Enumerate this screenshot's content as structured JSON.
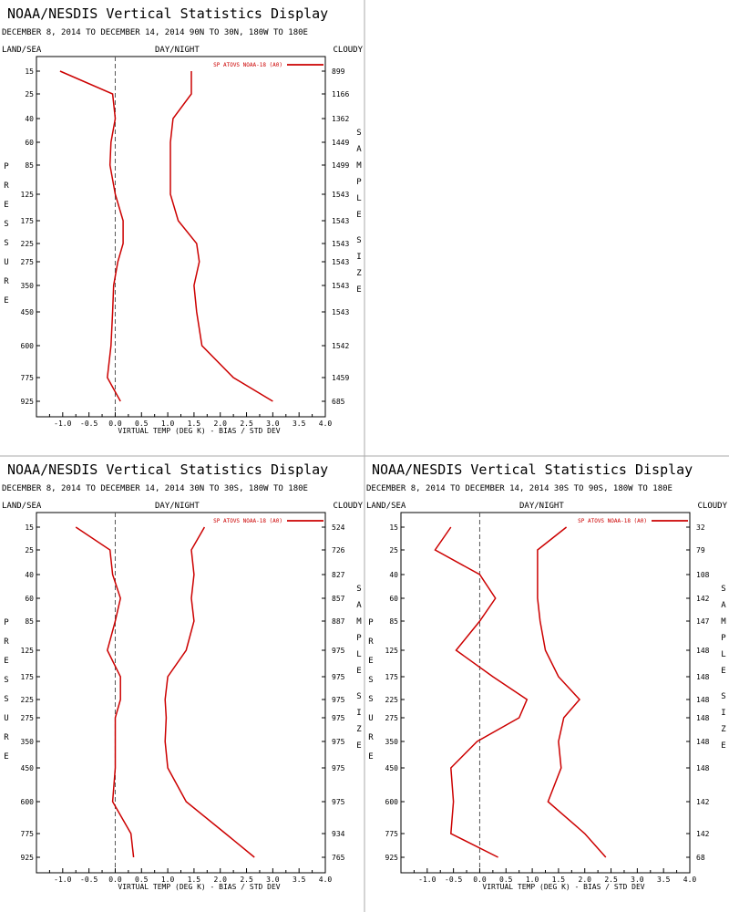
{
  "title": "NOAA/NESDIS Vertical Statistics Display",
  "header_labels": {
    "left": "LAND/SEA",
    "center": "DAY/NIGHT",
    "right": "CLOUDY"
  },
  "side_labels": {
    "left": "PRESSURE",
    "right": "SAMPLE SIZE"
  },
  "line_color": "#cc0000",
  "frame_color": "#aaaaaa",
  "chart_data": [
    {
      "type": "line",
      "subtitle": "DECEMBER 8, 2014 TO DECEMBER 14, 2014 90N TO 30N, 180W TO 180E",
      "xlabel": "VIRTUAL TEMP (DEG K) - BIAS / STD DEV",
      "legend": "SP ATOVS NOAA-18 (A0)",
      "xlim": [
        -1.5,
        4.0
      ],
      "xticks": [
        "-1.0",
        "-0.5",
        "0.0",
        "0.5",
        "1.0",
        "1.5",
        "2.0",
        "2.5",
        "3.0",
        "3.5",
        "4.0"
      ],
      "pressure_levels": [
        "15",
        "25",
        "40",
        "60",
        "85",
        "125",
        "175",
        "225",
        "275",
        "350",
        "450",
        "600",
        "775",
        "925"
      ],
      "sample_size": [
        "899",
        "1166",
        "1362",
        "1449",
        "1499",
        "1543",
        "1543",
        "1543",
        "1543",
        "1543",
        "1543",
        "1542",
        "1459",
        "685"
      ],
      "series": [
        {
          "values": [
            -1.05,
            -0.05,
            0.0,
            -0.08,
            -0.1,
            0.0,
            0.15,
            0.15,
            0.05,
            -0.03,
            -0.05,
            -0.08,
            -0.15,
            0.1
          ]
        },
        {
          "values": [
            1.45,
            1.45,
            1.1,
            1.05,
            1.05,
            1.05,
            1.2,
            1.55,
            1.6,
            1.5,
            1.55,
            1.65,
            2.25,
            3.0
          ]
        }
      ]
    },
    {
      "type": "line",
      "subtitle": "DECEMBER 8, 2014 TO DECEMBER 14, 2014 30N TO 30S, 180W TO 180E",
      "xlabel": "VIRTUAL TEMP (DEG K) - BIAS / STD DEV",
      "legend": "SP ATOVS NOAA-18 (A0)",
      "xlim": [
        -1.5,
        4.0
      ],
      "xticks": [
        "-1.0",
        "-0.5",
        "0.0",
        "0.5",
        "1.0",
        "1.5",
        "2.0",
        "2.5",
        "3.0",
        "3.5",
        "4.0"
      ],
      "pressure_levels": [
        "15",
        "25",
        "40",
        "60",
        "85",
        "125",
        "175",
        "225",
        "275",
        "350",
        "450",
        "600",
        "775",
        "925"
      ],
      "sample_size": [
        "524",
        "726",
        "827",
        "857",
        "887",
        "975",
        "975",
        "975",
        "975",
        "975",
        "975",
        "975",
        "934",
        "765"
      ],
      "series": [
        {
          "values": [
            -0.75,
            -0.1,
            -0.05,
            0.1,
            0.0,
            -0.15,
            0.1,
            0.1,
            0.0,
            0.0,
            0.0,
            -0.05,
            0.3,
            0.35
          ]
        },
        {
          "values": [
            1.7,
            1.45,
            1.5,
            1.45,
            1.5,
            1.35,
            1.0,
            0.95,
            0.97,
            0.95,
            1.0,
            1.35,
            2.1,
            2.65
          ]
        }
      ]
    },
    {
      "type": "line",
      "subtitle": "DECEMBER 8, 2014 TO DECEMBER 14, 2014 30S TO 90S, 180W TO 180E",
      "xlabel": "VIRTUAL TEMP (DEG K) - BIAS / STD DEV",
      "legend": "SP ATOVS NOAA-18 (A0)",
      "xlim": [
        -1.5,
        4.0
      ],
      "xticks": [
        "-1.0",
        "-0.5",
        "0.0",
        "0.5",
        "1.0",
        "1.5",
        "2.0",
        "2.5",
        "3.0",
        "3.5",
        "4.0"
      ],
      "pressure_levels": [
        "15",
        "25",
        "40",
        "60",
        "85",
        "125",
        "175",
        "225",
        "275",
        "350",
        "450",
        "600",
        "775",
        "925"
      ],
      "sample_size": [
        "32",
        "79",
        "108",
        "142",
        "147",
        "148",
        "148",
        "148",
        "148",
        "148",
        "148",
        "142",
        "142",
        "68"
      ],
      "series": [
        {
          "values": [
            -0.55,
            -0.85,
            0.0,
            0.3,
            0.0,
            -0.45,
            0.25,
            0.9,
            0.75,
            -0.05,
            -0.55,
            -0.5,
            -0.55,
            0.35
          ]
        },
        {
          "values": [
            1.65,
            1.1,
            1.1,
            1.1,
            1.15,
            1.25,
            1.5,
            1.9,
            1.6,
            1.5,
            1.55,
            1.3,
            2.0,
            2.4
          ]
        }
      ]
    }
  ]
}
